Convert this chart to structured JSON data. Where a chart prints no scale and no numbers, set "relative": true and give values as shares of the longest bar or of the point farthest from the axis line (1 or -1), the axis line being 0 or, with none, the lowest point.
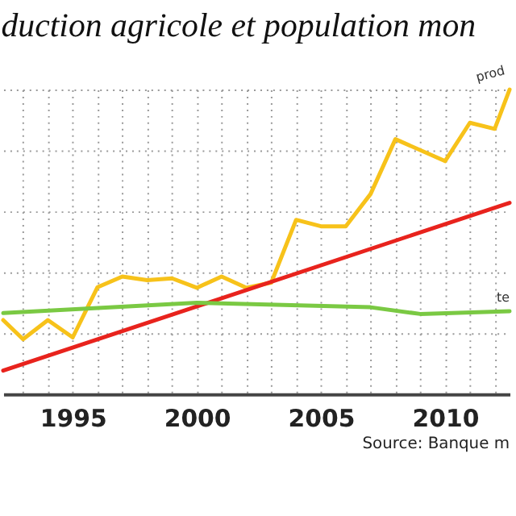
{
  "chart_data": {
    "type": "line",
    "title": "duction agricole et population mon",
    "relative": true,
    "grid": true,
    "x": [
      1992.2,
      1993,
      1994,
      1995,
      1996,
      1997,
      1998,
      1999,
      2000,
      2001,
      2002,
      2003,
      2004,
      2005,
      2006,
      2007,
      2008,
      2010,
      2011,
      2012,
      2012.6
    ],
    "xlim": [
      1992.2,
      2012.6
    ],
    "xticks": [
      {
        "value": 1993,
        "label": null
      },
      {
        "value": 1994,
        "label": null
      },
      1995,
      {
        "value": 1996,
        "label": null
      },
      {
        "value": 1997,
        "label": null
      },
      {
        "value": 1998,
        "label": null
      },
      {
        "value": 1999,
        "label": null
      },
      2000,
      {
        "value": 2001,
        "label": null
      },
      {
        "value": 2002,
        "label": null
      },
      {
        "value": 2003,
        "label": null
      },
      {
        "value": 2004,
        "label": null
      },
      2005,
      {
        "value": 2006,
        "label": null
      },
      {
        "value": 2007,
        "label": null
      },
      {
        "value": 2008,
        "label": null
      },
      {
        "value": 2009,
        "label": null
      },
      2010,
      {
        "value": 2011,
        "label": null
      },
      {
        "value": 2012,
        "label": null
      }
    ],
    "series": [
      {
        "name": "prod",
        "color": "#f7c21a",
        "values": [
          0.243,
          0.18,
          0.243,
          0.186,
          0.351,
          0.386,
          0.374,
          0.38,
          0.349,
          0.386,
          0.349,
          0.366,
          0.572,
          0.551,
          0.551,
          0.657,
          0.837,
          0.765,
          0.891,
          0.871,
          1
        ]
      },
      {
        "color": "#e8231d",
        "x": [
          1992.2,
          2012.6
        ],
        "values": [
          0.077,
          0.628
        ]
      },
      {
        "name": "te",
        "color": "#7ac943",
        "x": [
          1992.2,
          2000,
          2007,
          2009,
          2012.6
        ],
        "values": [
          0.266,
          0.3,
          0.285,
          0.263,
          0.272
        ]
      }
    ],
    "annotations": [
      "Source: Banque m"
    ]
  }
}
